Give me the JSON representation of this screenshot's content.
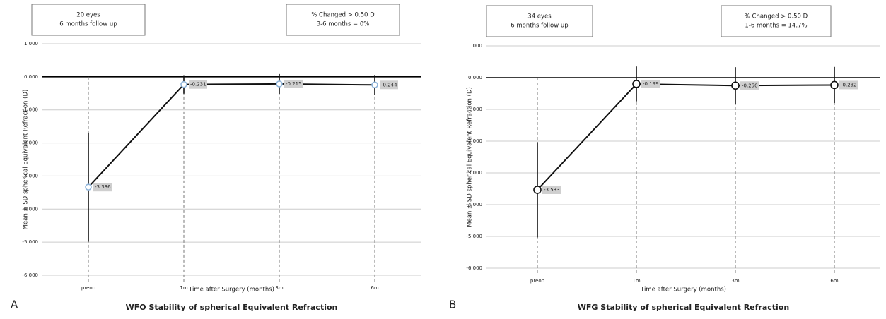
{
  "chart_data": [
    {
      "type": "line",
      "panel_label": "A",
      "title": "WFO Stability of spherical Equivalent Refraction",
      "annotations": [
        [
          "20 eyes",
          "6 months follow up"
        ],
        [
          "% Changed > 0.50 D",
          "3-6 months = 0%"
        ]
      ],
      "x_label": "Time after Surgery (months)",
      "y_label": "Mean ± SD spherical Equivalent Refraction (D)",
      "categories": [
        "preop",
        "1m",
        "3m",
        "6m"
      ],
      "series": [
        {
          "values": [
            -3.336,
            -0.231,
            -0.215,
            -0.244
          ],
          "value_labels": [
            "-3.336",
            "-0.231",
            "-0.215",
            "-0.244"
          ],
          "errors": [
            1.65,
            0.28,
            0.3,
            0.3
          ],
          "color": "#111111",
          "marker_fill": "#ffffff",
          "marker_stroke": "#8fb4d9"
        }
      ],
      "ylim": [
        -6,
        1
      ],
      "yticks": [
        {
          "value": 1,
          "label": "1.000"
        },
        {
          "value": 0,
          "label": "0.000"
        },
        {
          "value": -1,
          "label": "-1.000"
        },
        {
          "value": -2,
          "label": "-2.000"
        },
        {
          "value": -3,
          "label": "-3.000"
        },
        {
          "value": -4,
          "label": "-4.000"
        },
        {
          "value": -5,
          "label": "-5.000"
        },
        {
          "value": -6,
          "label": "-6.000"
        }
      ],
      "grid": true
    },
    {
      "type": "line",
      "panel_label": "B",
      "title": "WFG Stability of spherical Equivalent Refraction",
      "annotations": [
        [
          "34 eyes",
          "6 months follow up"
        ],
        [
          "% Changed > 0.50 D",
          "1-6 months = 14.7%"
        ]
      ],
      "x_label": "Time after Surgery (months)",
      "y_label": "Mean ± SD spherical Equivalent Refraction (D)",
      "categories": [
        "preop",
        "1m",
        "3m",
        "6m"
      ],
      "series": [
        {
          "values": [
            -3.533,
            -0.199,
            -0.25,
            -0.232
          ],
          "value_labels": [
            "-3.533",
            "-0.199",
            "-0.250",
            "-0.232"
          ],
          "errors": [
            1.5,
            0.55,
            0.58,
            0.57
          ],
          "color": "#111111",
          "marker_fill": "#ffffff",
          "marker_stroke": "#111111"
        }
      ],
      "ylim": [
        -6,
        1
      ],
      "yticks": [
        {
          "value": 1,
          "label": "1.000"
        },
        {
          "value": 0,
          "label": "0.000"
        },
        {
          "value": -1,
          "label": "-1.000"
        },
        {
          "value": -2,
          "label": "-2.000"
        },
        {
          "value": -3,
          "label": "-3.000"
        },
        {
          "value": -4,
          "label": "-4.000"
        },
        {
          "value": -5,
          "label": "-5.000"
        },
        {
          "value": -6,
          "label": "-6.000"
        }
      ],
      "grid": true
    }
  ]
}
